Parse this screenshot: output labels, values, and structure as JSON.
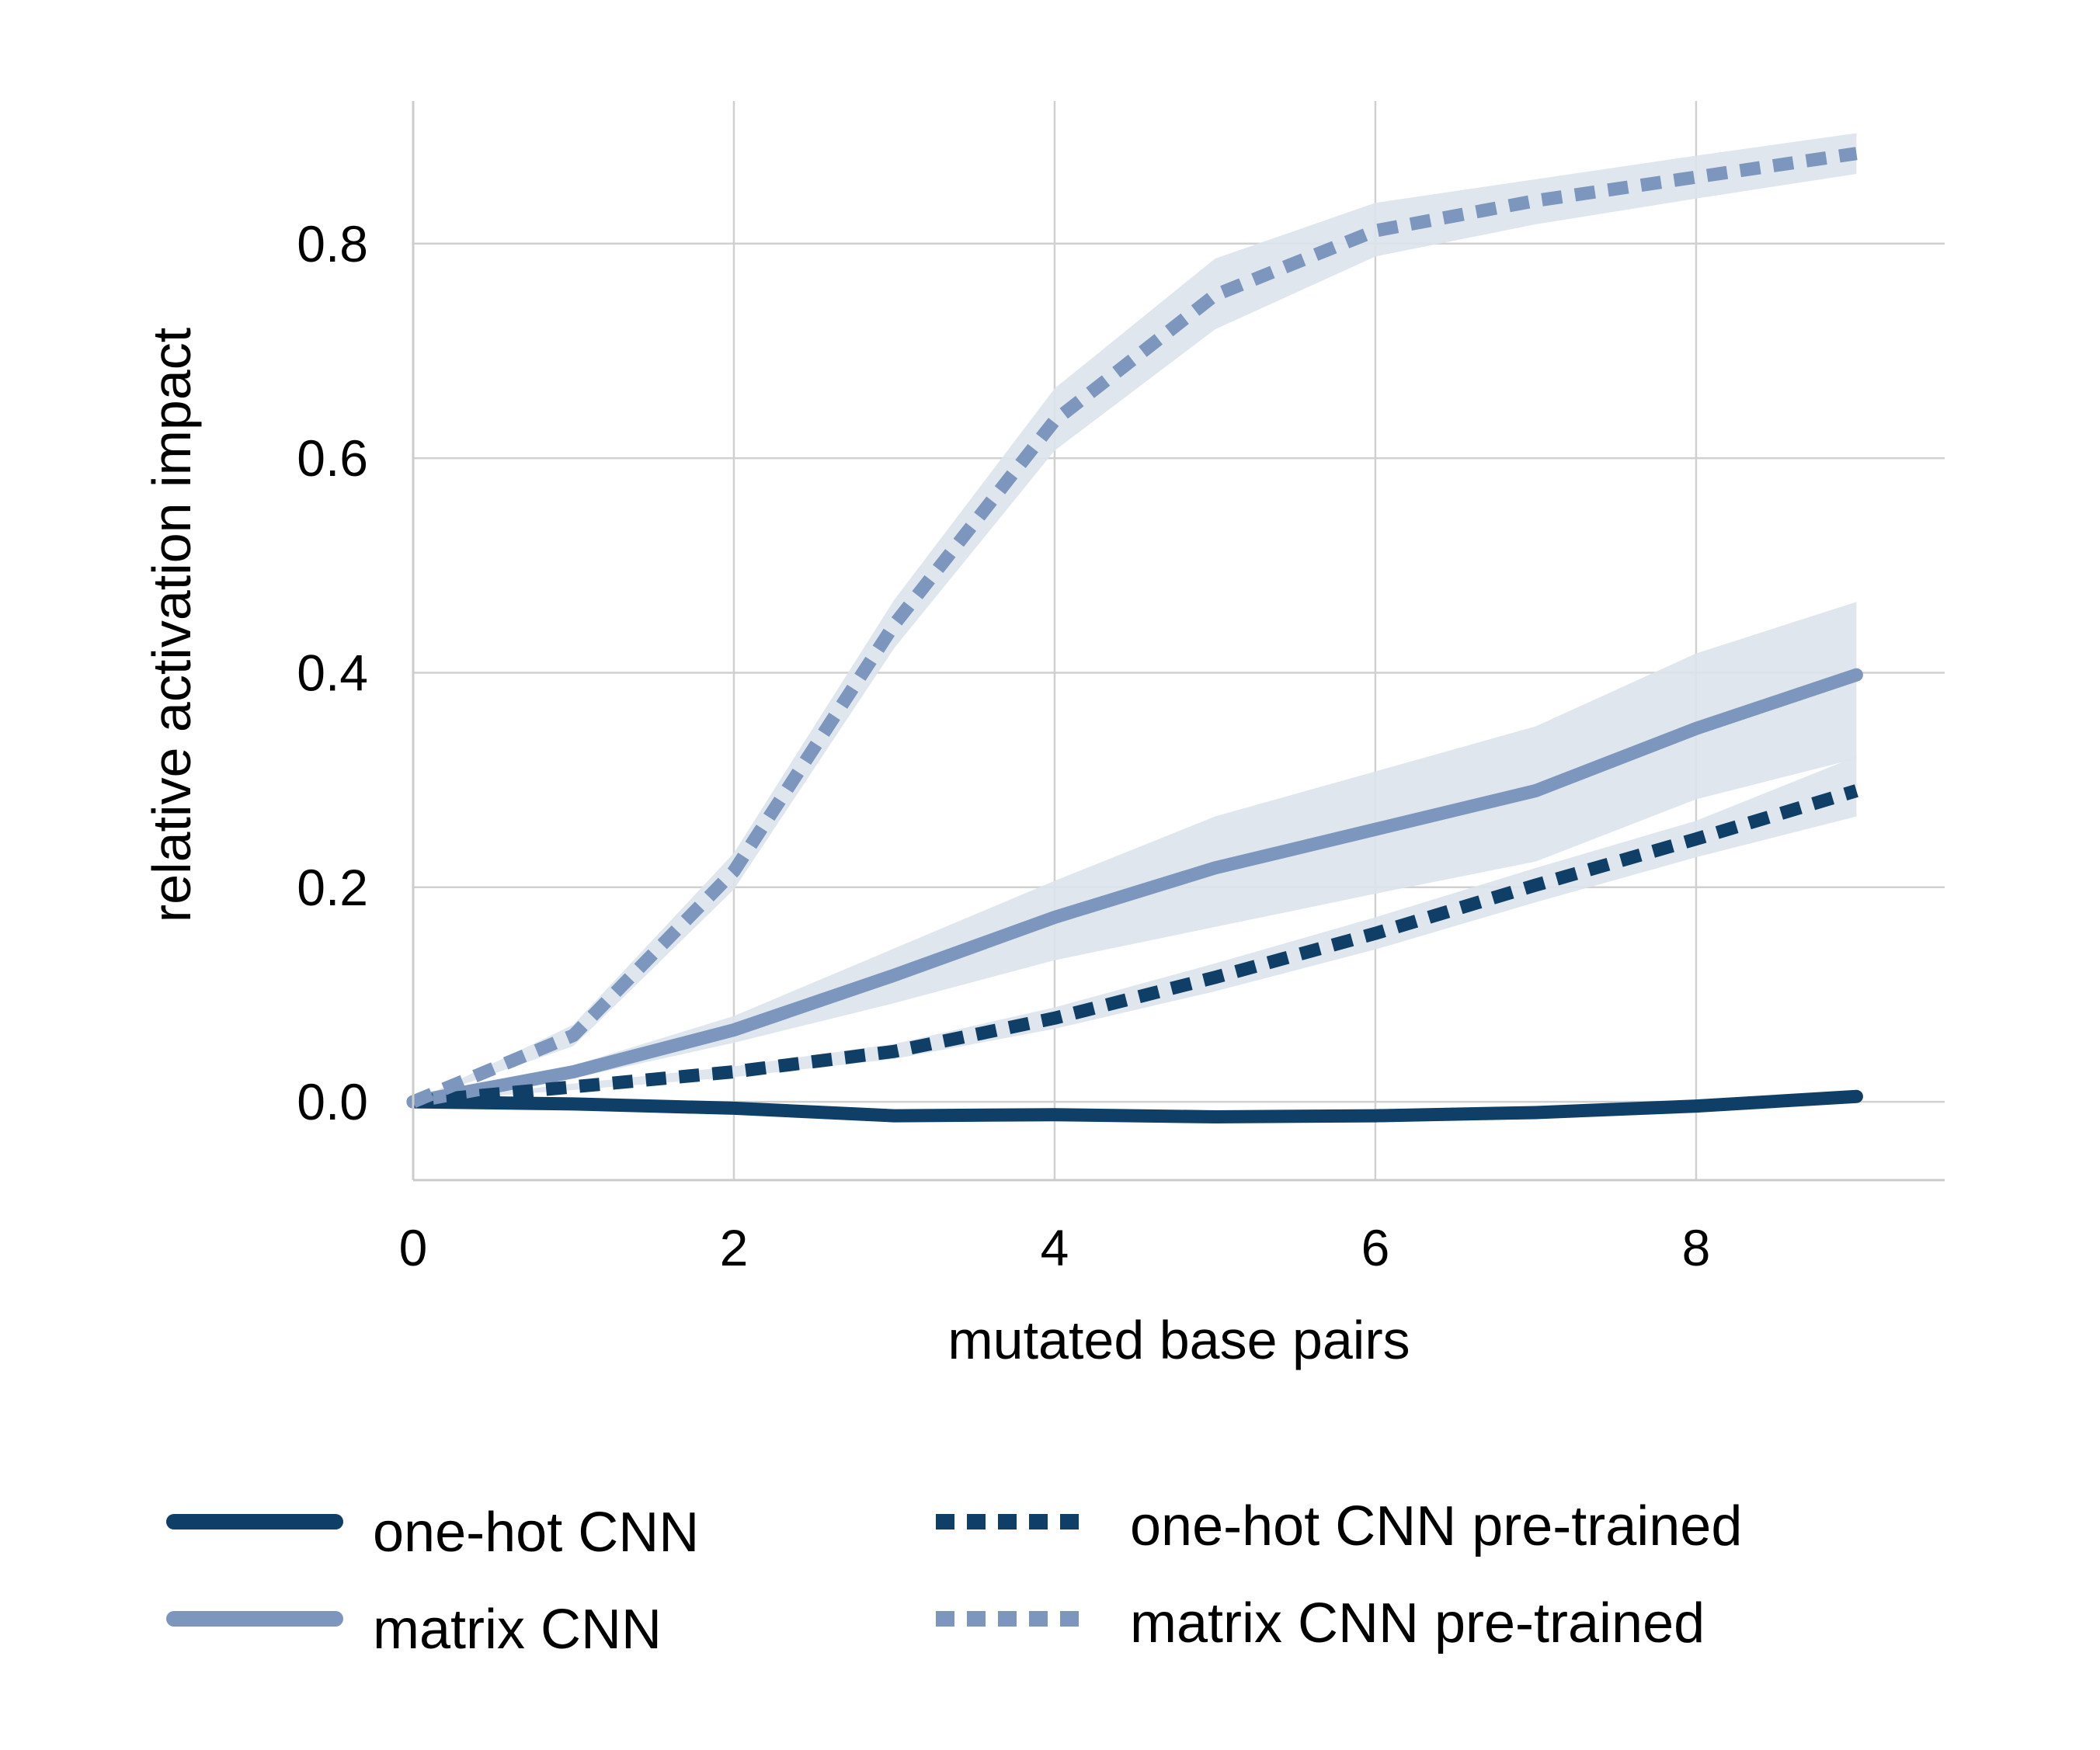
{
  "chart_data": {
    "type": "line",
    "title": "",
    "xlabel": "mutated base pairs",
    "ylabel": "relative activation impact",
    "xlim": [
      0,
      9.55
    ],
    "ylim": [
      -0.073,
      0.933
    ],
    "xticks": [
      0,
      2,
      4,
      6,
      8
    ],
    "yticks": [
      0.0,
      0.2,
      0.4,
      0.6,
      0.8
    ],
    "xtick_labels": [
      "0",
      "2",
      "4",
      "6",
      "8"
    ],
    "ytick_labels": [
      "0.0",
      "0.2",
      "0.4",
      "0.6",
      "0.8"
    ],
    "grid": true,
    "legend_position": "bottom",
    "x": [
      0,
      1,
      2,
      3,
      4,
      5,
      6,
      7,
      8,
      9
    ],
    "series": [
      {
        "name": "one-hot CNN",
        "color": "#0f3f66",
        "style": "solid",
        "values": [
          0.0,
          -0.002,
          -0.006,
          -0.013,
          -0.012,
          -0.014,
          -0.013,
          -0.01,
          -0.004,
          0.005
        ],
        "ci_lower": [
          0.0,
          -0.004,
          -0.008,
          -0.015,
          -0.014,
          -0.016,
          -0.015,
          -0.012,
          -0.006,
          0.003
        ],
        "ci_upper": [
          0.0,
          0.0,
          -0.004,
          -0.011,
          -0.01,
          -0.012,
          -0.011,
          -0.008,
          -0.002,
          0.007
        ]
      },
      {
        "name": "matrix CNN",
        "color": "#7c96bd",
        "style": "solid",
        "values": [
          0.0,
          0.028,
          0.067,
          0.118,
          0.172,
          0.218,
          0.254,
          0.29,
          0.348,
          0.398
        ],
        "ci_lower": [
          0.0,
          0.022,
          0.055,
          0.092,
          0.132,
          0.163,
          0.194,
          0.224,
          0.282,
          0.32
        ],
        "ci_upper": [
          0.0,
          0.034,
          0.08,
          0.143,
          0.206,
          0.266,
          0.308,
          0.35,
          0.418,
          0.466
        ]
      },
      {
        "name": "one-hot CNN pre-trained",
        "color": "#0f3f66",
        "style": "dashed",
        "values": [
          0.0,
          0.014,
          0.028,
          0.047,
          0.078,
          0.116,
          0.157,
          0.202,
          0.245,
          0.29
        ],
        "ci_lower": [
          0.0,
          0.011,
          0.023,
          0.04,
          0.068,
          0.103,
          0.142,
          0.186,
          0.228,
          0.266
        ],
        "ci_upper": [
          0.0,
          0.017,
          0.033,
          0.054,
          0.088,
          0.129,
          0.172,
          0.218,
          0.262,
          0.322
        ]
      },
      {
        "name": "matrix CNN pre-trained",
        "color": "#7c96bd",
        "style": "dashed",
        "values": [
          0.0,
          0.062,
          0.215,
          0.445,
          0.635,
          0.752,
          0.812,
          0.84,
          0.862,
          0.884
        ],
        "ci_lower": [
          0.0,
          0.052,
          0.198,
          0.423,
          0.607,
          0.72,
          0.788,
          0.818,
          0.842,
          0.865
        ],
        "ci_upper": [
          0.0,
          0.072,
          0.232,
          0.468,
          0.665,
          0.786,
          0.838,
          0.86,
          0.882,
          0.903
        ]
      }
    ],
    "band_color": "#dde3ec"
  }
}
